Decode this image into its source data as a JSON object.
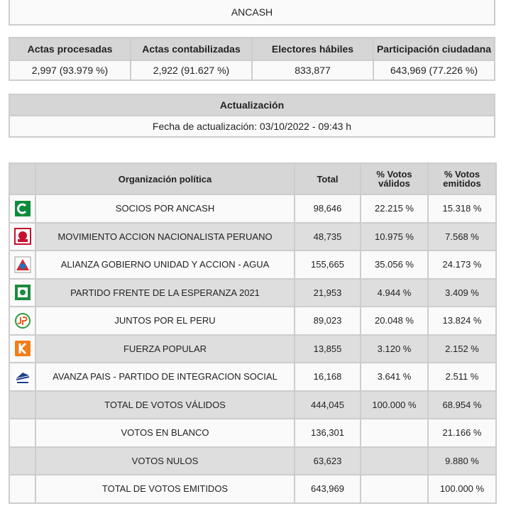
{
  "region": "ANCASH",
  "summary": {
    "headers": [
      "Actas procesadas",
      "Actas contabilizadas",
      "Electores hábiles",
      "Participación ciudadana"
    ],
    "values": [
      "2,997 (93.979 %)",
      "2,922 (91.627 %)",
      "833,877",
      "643,969 (77.226 %)"
    ]
  },
  "update": {
    "title": "Actualización",
    "text": "Fecha de actualización: 03/10/2022 - 09:43 h"
  },
  "table": {
    "headers": [
      "Organización política",
      "Total",
      "% Votos válidos",
      "% Votos emitidos"
    ],
    "rows": [
      [
        "SOCIOS POR ANCASH",
        "98,646",
        "22.215 %",
        "15.318 %"
      ],
      [
        "MOVIMIENTO ACCION NACIONALISTA PERUANO",
        "48,735",
        "10.975 %",
        "7.568 %"
      ],
      [
        "ALIANZA GOBIERNO UNIDAD Y ACCION - AGUA",
        "155,665",
        "35.056 %",
        "24.173 %"
      ],
      [
        "PARTIDO FRENTE DE LA ESPERANZA 2021",
        "21,953",
        "4.944 %",
        "3.409 %"
      ],
      [
        "JUNTOS POR EL PERU",
        "89,023",
        "20.048 %",
        "13.824 %"
      ],
      [
        "FUERZA POPULAR",
        "13,855",
        "3.120 %",
        "2.152 %"
      ],
      [
        "AVANZA PAIS - PARTIDO DE INTEGRACION SOCIAL",
        "16,168",
        "3.641 %",
        "2.511 %"
      ],
      [
        "TOTAL DE VOTOS VÁLIDOS",
        "444,045",
        "100.000 %",
        "68.954 %"
      ],
      [
        "VOTOS EN BLANCO",
        "136,301",
        null,
        "21.166 %"
      ],
      [
        "VOTOS NULOS",
        "63,623",
        null,
        "9.880 %"
      ],
      [
        "TOTAL DE VOTOS EMITIDOS",
        "643,969",
        null,
        "100.000 %"
      ]
    ]
  }
}
